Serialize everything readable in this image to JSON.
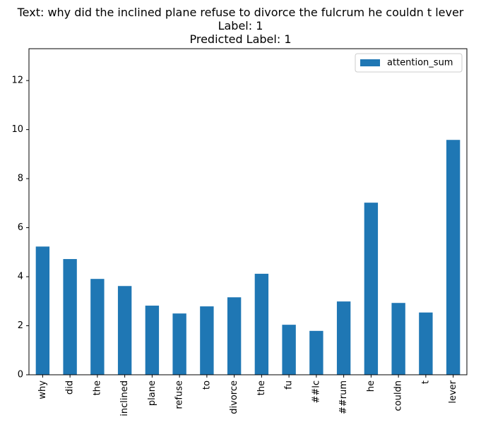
{
  "chart_data": {
    "type": "bar",
    "title_lines": [
      "Text: why did the inclined plane refuse to divorce the fulcrum he couldn t lever",
      "Label: 1",
      "Predicted Label: 1"
    ],
    "categories": [
      "why",
      "did",
      "the",
      "inclined",
      "plane",
      "refuse",
      "to",
      "divorce",
      "the",
      "fu",
      "##lc",
      "##rum",
      "he",
      "couldn",
      "t",
      "lever"
    ],
    "series": [
      {
        "name": "attention_sum",
        "color": "#1f77b4",
        "values": [
          5.23,
          4.72,
          3.91,
          3.62,
          2.82,
          2.5,
          2.79,
          3.16,
          4.12,
          2.04,
          1.79,
          2.99,
          7.02,
          2.93,
          2.54,
          9.58
        ]
      }
    ],
    "yticks": [
      0,
      2,
      4,
      6,
      8,
      10,
      12
    ],
    "ylim": [
      0,
      13.3
    ],
    "xlabel": "",
    "ylabel": "",
    "grid": false,
    "legend_position": "top-right"
  }
}
